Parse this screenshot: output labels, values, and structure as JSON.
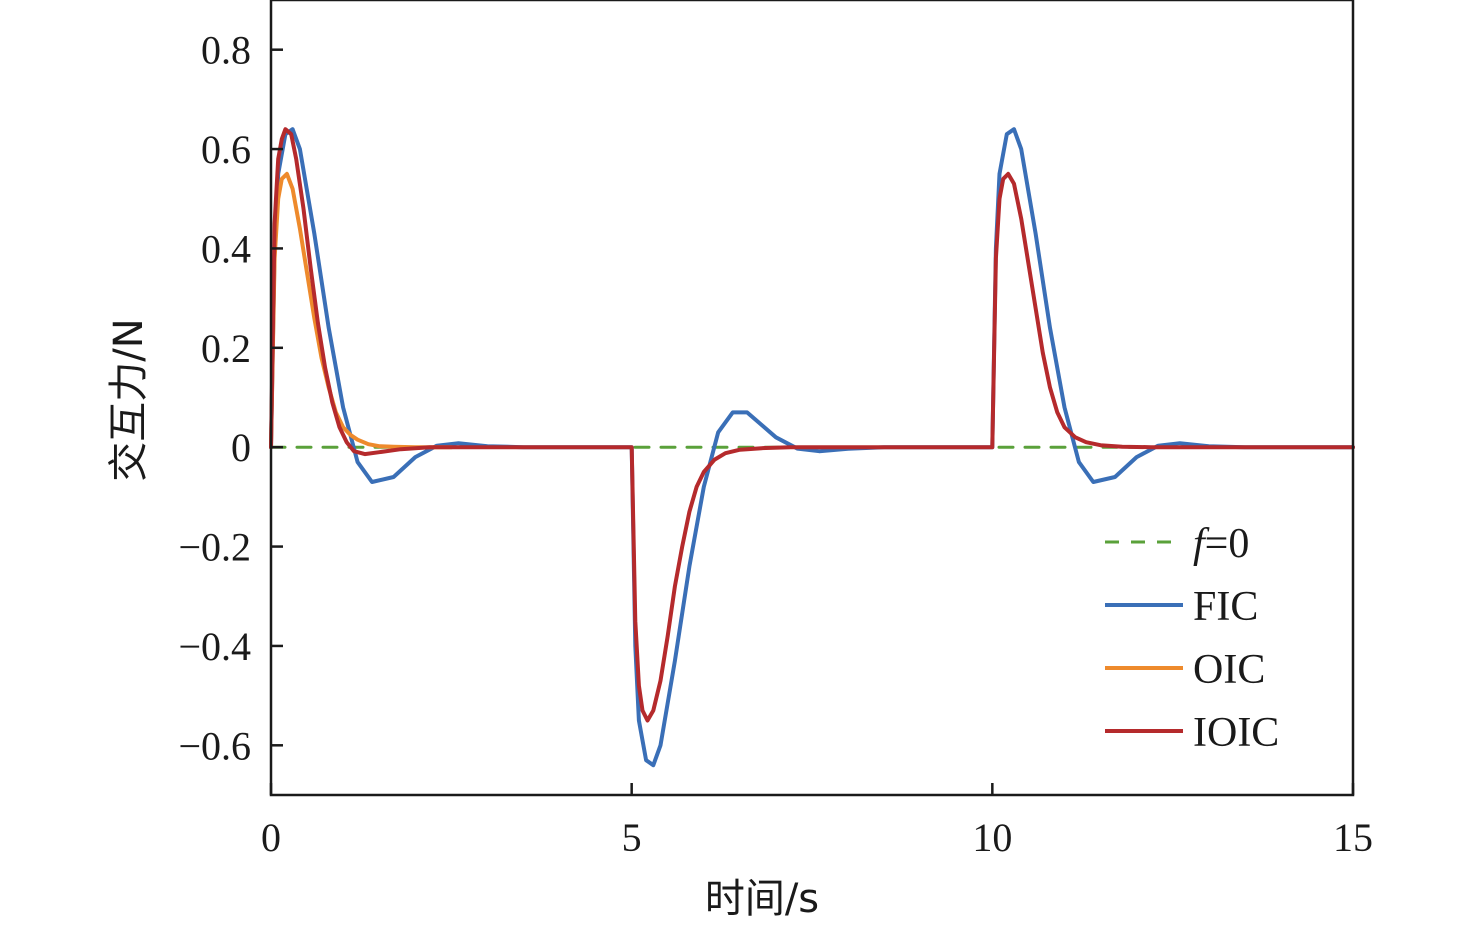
{
  "chart_data": {
    "type": "line",
    "title": "",
    "xlabel": "时间/s",
    "ylabel": "交互力/N",
    "xlim": [
      0,
      15
    ],
    "ylim": [
      -0.7,
      0.9
    ],
    "xticks": [
      0,
      5,
      10,
      15
    ],
    "xtick_labels": [
      "0",
      "5",
      "10",
      "15"
    ],
    "yticks": [
      -0.6,
      -0.4,
      -0.2,
      0,
      0.2,
      0.4,
      0.6,
      0.8
    ],
    "ytick_labels": [
      "−0.6",
      "−0.4",
      "−0.2",
      "0",
      "0.2",
      "0.4",
      "0.6",
      "0.8"
    ],
    "grid": false,
    "legend_position": "bottom-right",
    "series": [
      {
        "name": "f=0",
        "name_italic": "f",
        "name_rest": "=0",
        "color": "#5aa13a",
        "dashed": true,
        "x": [
          0,
          15
        ],
        "y": [
          0,
          0
        ]
      },
      {
        "name": "FIC",
        "color": "#3a6fb7",
        "dashed": false,
        "x": [
          0,
          0.05,
          0.1,
          0.2,
          0.3,
          0.4,
          0.6,
          0.8,
          1.0,
          1.2,
          1.4,
          1.7,
          2.0,
          2.3,
          2.6,
          3.0,
          3.5,
          4.0,
          4.5,
          5.0,
          5.05,
          5.1,
          5.2,
          5.3,
          5.4,
          5.6,
          5.8,
          6.0,
          6.2,
          6.4,
          6.6,
          7.0,
          7.3,
          7.6,
          8.0,
          8.5,
          9.0,
          9.5,
          10.0,
          10.05,
          10.1,
          10.2,
          10.3,
          10.4,
          10.6,
          10.8,
          11.0,
          11.2,
          11.4,
          11.7,
          12.0,
          12.3,
          12.6,
          13.0,
          13.5,
          14.0,
          14.5,
          15.0
        ],
        "y": [
          0,
          0.4,
          0.55,
          0.63,
          0.64,
          0.6,
          0.43,
          0.24,
          0.08,
          -0.03,
          -0.07,
          -0.06,
          -0.02,
          0.003,
          0.008,
          0.002,
          0,
          0,
          0,
          0,
          -0.4,
          -0.55,
          -0.63,
          -0.64,
          -0.6,
          -0.43,
          -0.24,
          -0.08,
          0.03,
          0.07,
          0.07,
          0.02,
          -0.003,
          -0.008,
          -0.003,
          0,
          0,
          0,
          0,
          0.4,
          0.55,
          0.63,
          0.64,
          0.6,
          0.43,
          0.24,
          0.08,
          -0.03,
          -0.07,
          -0.06,
          -0.02,
          0.003,
          0.008,
          0.002,
          0,
          0,
          0,
          0
        ]
      },
      {
        "name": "OIC",
        "color": "#ee8a2c",
        "dashed": false,
        "x": [
          0,
          0.05,
          0.1,
          0.15,
          0.22,
          0.3,
          0.4,
          0.5,
          0.6,
          0.7,
          0.8,
          0.9,
          1.0,
          1.1,
          1.2,
          1.35,
          1.5,
          1.7,
          2.0,
          2.5
        ],
        "y": [
          0,
          0.38,
          0.5,
          0.54,
          0.55,
          0.52,
          0.44,
          0.35,
          0.26,
          0.18,
          0.12,
          0.07,
          0.04,
          0.025,
          0.015,
          0.006,
          0.002,
          0.001,
          0,
          0
        ]
      },
      {
        "name": "IOIC",
        "color": "#b52a2c",
        "dashed": false,
        "x": [
          0,
          0.05,
          0.1,
          0.15,
          0.2,
          0.28,
          0.35,
          0.45,
          0.55,
          0.65,
          0.75,
          0.85,
          0.95,
          1.05,
          1.15,
          1.3,
          1.5,
          1.8,
          2.2,
          3.0,
          4.0,
          5.0,
          5.05,
          5.1,
          5.15,
          5.22,
          5.3,
          5.4,
          5.5,
          5.6,
          5.7,
          5.8,
          5.9,
          6.0,
          6.15,
          6.3,
          6.5,
          6.8,
          7.2,
          8.0,
          9.0,
          10.0,
          10.05,
          10.1,
          10.15,
          10.22,
          10.3,
          10.4,
          10.5,
          10.6,
          10.7,
          10.8,
          10.9,
          11.0,
          11.15,
          11.3,
          11.5,
          11.8,
          12.2,
          13.0,
          14.0,
          15.0
        ],
        "y": [
          0,
          0.45,
          0.58,
          0.62,
          0.64,
          0.63,
          0.58,
          0.48,
          0.36,
          0.25,
          0.16,
          0.09,
          0.04,
          0.01,
          -0.008,
          -0.014,
          -0.01,
          -0.004,
          0,
          0,
          0,
          0,
          -0.35,
          -0.48,
          -0.53,
          -0.55,
          -0.53,
          -0.47,
          -0.38,
          -0.28,
          -0.2,
          -0.13,
          -0.08,
          -0.05,
          -0.025,
          -0.012,
          -0.005,
          -0.002,
          0,
          0,
          0,
          0,
          0.38,
          0.5,
          0.54,
          0.55,
          0.53,
          0.46,
          0.37,
          0.28,
          0.19,
          0.12,
          0.07,
          0.04,
          0.02,
          0.01,
          0.004,
          0.001,
          0,
          0,
          0,
          0
        ]
      }
    ]
  }
}
